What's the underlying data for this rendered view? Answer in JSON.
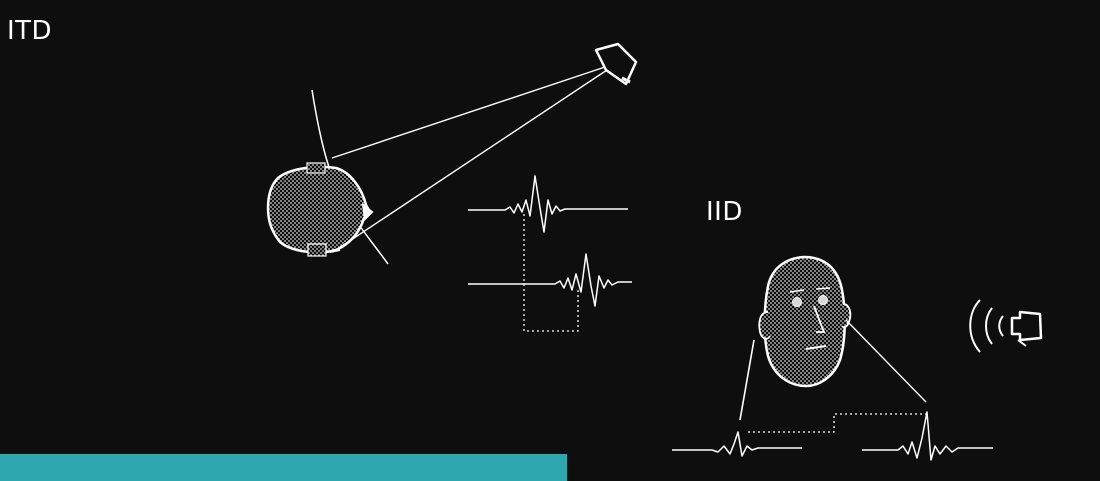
{
  "labels": {
    "itd": "ITD",
    "iid": "IID"
  },
  "colors": {
    "background": "#0e0e0f",
    "stroke": "#ffffff",
    "accent_bar": "#2ea8ae"
  },
  "icons": {
    "itd_head": "head-top-view-icon",
    "itd_source": "speaker-icon",
    "iid_head": "head-front-view-icon",
    "iid_source": "speaker-with-sound-waves-icon"
  }
}
